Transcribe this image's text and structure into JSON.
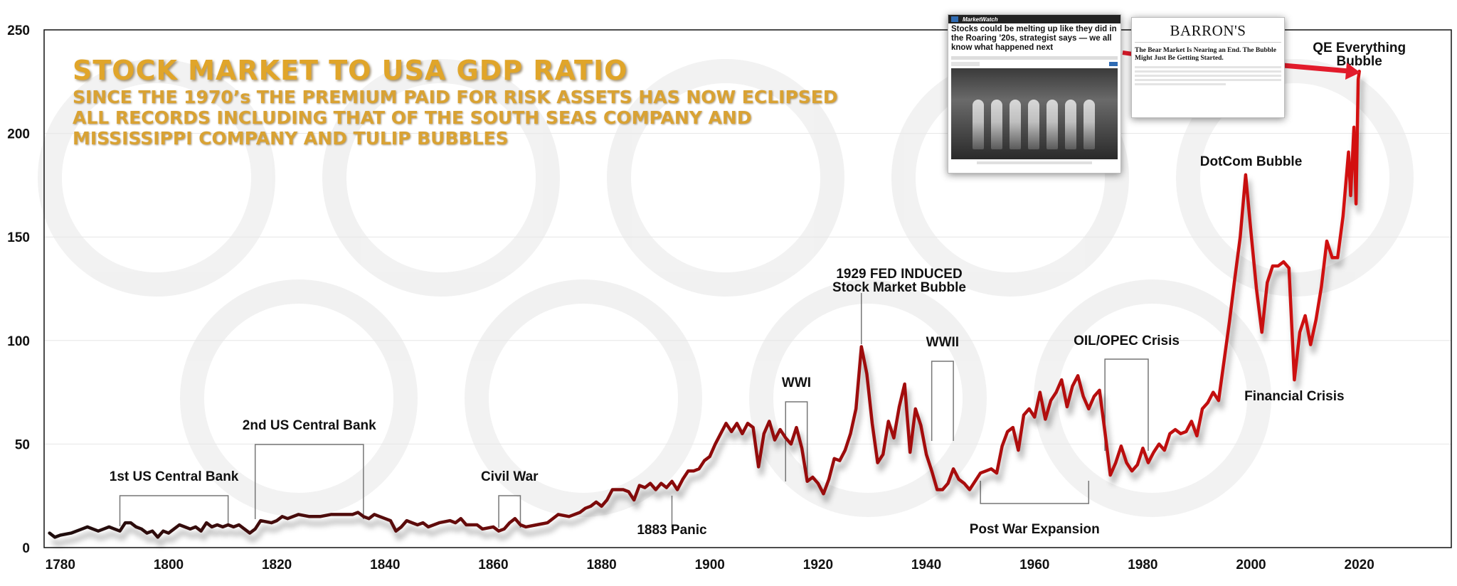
{
  "title": "STOCK MARKET TO USA GDP RATIO",
  "subtitle_lines": [
    "SINCE THE 1970’s THE PREMIUM PAID FOR RISK ASSETS HAS NOW ECLIPSED",
    "ALL RECORDS INCLUDING THAT OF THE SOUTH SEAS COMPANY AND",
    "MISSISSIPPI COMPANY AND TULIP BUBBLES"
  ],
  "colors": {
    "line_start": "#1c0d0d",
    "line_mid": "#8a0a0a",
    "line_end": "#dd1111",
    "title_gold": "#e0a52a",
    "arrow_red": "#e21b2b",
    "bracket_gray": "#777777"
  },
  "clippings": {
    "marketwatch": {
      "brand": "MarketWatch",
      "headline": "Stocks could be melting up like they did in the Roaring ’20s, strategist says — we all know what happened next"
    },
    "barrons": {
      "brand": "BARRON'S",
      "headline": "The Bear Market Is Nearing an End. The Bubble Might Just Be Getting Started."
    }
  },
  "chart_data": {
    "type": "line",
    "xlim": [
      1777,
      2037
    ],
    "ylim": [
      0,
      250
    ],
    "x_ticks": [
      1780,
      1800,
      1820,
      1840,
      1860,
      1880,
      1900,
      1920,
      1940,
      1960,
      1980,
      2000,
      2020
    ],
    "y_ticks": [
      0,
      50,
      100,
      150,
      200,
      250
    ],
    "grid": true,
    "series": [
      {
        "points": [
          [
            1778,
            7
          ],
          [
            1779,
            5
          ],
          [
            1780,
            6
          ],
          [
            1782,
            7
          ],
          [
            1784,
            9
          ],
          [
            1785,
            10
          ],
          [
            1786,
            9
          ],
          [
            1787,
            8
          ],
          [
            1788,
            9
          ],
          [
            1789,
            10
          ],
          [
            1790,
            9
          ],
          [
            1791,
            8
          ],
          [
            1792,
            12
          ],
          [
            1793,
            12
          ],
          [
            1794,
            10
          ],
          [
            1795,
            9
          ],
          [
            1796,
            7
          ],
          [
            1797,
            8
          ],
          [
            1798,
            5
          ],
          [
            1799,
            8
          ],
          [
            1800,
            7
          ],
          [
            1802,
            11
          ],
          [
            1803,
            10
          ],
          [
            1804,
            9
          ],
          [
            1805,
            10
          ],
          [
            1806,
            8
          ],
          [
            1807,
            12
          ],
          [
            1808,
            10
          ],
          [
            1809,
            11
          ],
          [
            1810,
            10
          ],
          [
            1811,
            11
          ],
          [
            1812,
            10
          ],
          [
            1813,
            11
          ],
          [
            1814,
            9
          ],
          [
            1815,
            7
          ],
          [
            1816,
            9
          ],
          [
            1817,
            13
          ],
          [
            1819,
            12
          ],
          [
            1820,
            13
          ],
          [
            1821,
            15
          ],
          [
            1822,
            14
          ],
          [
            1824,
            16
          ],
          [
            1826,
            15
          ],
          [
            1828,
            15
          ],
          [
            1830,
            16
          ],
          [
            1832,
            16
          ],
          [
            1834,
            16
          ],
          [
            1835,
            17
          ],
          [
            1836,
            15
          ],
          [
            1837,
            14
          ],
          [
            1838,
            16
          ],
          [
            1839,
            15
          ],
          [
            1840,
            14
          ],
          [
            1841,
            13
          ],
          [
            1842,
            8
          ],
          [
            1843,
            10
          ],
          [
            1844,
            13
          ],
          [
            1845,
            12
          ],
          [
            1846,
            11
          ],
          [
            1847,
            12
          ],
          [
            1848,
            10
          ],
          [
            1850,
            12
          ],
          [
            1852,
            13
          ],
          [
            1853,
            12
          ],
          [
            1854,
            14
          ],
          [
            1855,
            11
          ],
          [
            1857,
            11
          ],
          [
            1858,
            9
          ],
          [
            1860,
            10
          ],
          [
            1861,
            8
          ],
          [
            1862,
            9
          ],
          [
            1863,
            12
          ],
          [
            1864,
            14
          ],
          [
            1865,
            11
          ],
          [
            1866,
            10
          ],
          [
            1868,
            11
          ],
          [
            1870,
            12
          ],
          [
            1872,
            16
          ],
          [
            1874,
            15
          ],
          [
            1876,
            17
          ],
          [
            1877,
            19
          ],
          [
            1878,
            20
          ],
          [
            1879,
            22
          ],
          [
            1880,
            20
          ],
          [
            1881,
            23
          ],
          [
            1882,
            28
          ],
          [
            1884,
            28
          ],
          [
            1885,
            27
          ],
          [
            1886,
            23
          ],
          [
            1887,
            30
          ],
          [
            1888,
            29
          ],
          [
            1889,
            31
          ],
          [
            1890,
            28
          ],
          [
            1891,
            31
          ],
          [
            1892,
            29
          ],
          [
            1893,
            32
          ],
          [
            1894,
            28
          ],
          [
            1895,
            33
          ],
          [
            1896,
            37
          ],
          [
            1897,
            37
          ],
          [
            1898,
            38
          ],
          [
            1899,
            42
          ],
          [
            1900,
            44
          ],
          [
            1901,
            50
          ],
          [
            1902,
            55
          ],
          [
            1903,
            60
          ],
          [
            1904,
            56
          ],
          [
            1905,
            60
          ],
          [
            1906,
            55
          ],
          [
            1907,
            60
          ],
          [
            1908,
            58
          ],
          [
            1909,
            39
          ],
          [
            1910,
            55
          ],
          [
            1911,
            61
          ],
          [
            1912,
            52
          ],
          [
            1913,
            57
          ],
          [
            1914,
            53
          ],
          [
            1915,
            50
          ],
          [
            1916,
            58
          ],
          [
            1917,
            48
          ],
          [
            1918,
            32
          ],
          [
            1919,
            34
          ],
          [
            1920,
            31
          ],
          [
            1921,
            26
          ],
          [
            1922,
            33
          ],
          [
            1923,
            43
          ],
          [
            1924,
            42
          ],
          [
            1925,
            47
          ],
          [
            1926,
            55
          ],
          [
            1927,
            67
          ],
          [
            1928,
            97
          ],
          [
            1929,
            84
          ],
          [
            1930,
            60
          ],
          [
            1931,
            41
          ],
          [
            1932,
            45
          ],
          [
            1933,
            61
          ],
          [
            1934,
            53
          ],
          [
            1935,
            68
          ],
          [
            1936,
            79
          ],
          [
            1937,
            46
          ],
          [
            1938,
            67
          ],
          [
            1939,
            59
          ],
          [
            1940,
            45
          ],
          [
            1941,
            37
          ],
          [
            1942,
            28
          ],
          [
            1943,
            28
          ],
          [
            1944,
            31
          ],
          [
            1945,
            38
          ],
          [
            1946,
            33
          ],
          [
            1947,
            31
          ],
          [
            1948,
            28
          ],
          [
            1949,
            32
          ],
          [
            1950,
            36
          ],
          [
            1951,
            37
          ],
          [
            1952,
            38
          ],
          [
            1953,
            36
          ],
          [
            1954,
            49
          ],
          [
            1955,
            56
          ],
          [
            1956,
            58
          ],
          [
            1957,
            47
          ],
          [
            1958,
            64
          ],
          [
            1959,
            67
          ],
          [
            1960,
            63
          ],
          [
            1961,
            75
          ],
          [
            1962,
            62
          ],
          [
            1963,
            71
          ],
          [
            1964,
            75
          ],
          [
            1965,
            81
          ],
          [
            1966,
            68
          ],
          [
            1967,
            78
          ],
          [
            1968,
            83
          ],
          [
            1969,
            73
          ],
          [
            1970,
            67
          ],
          [
            1971,
            73
          ],
          [
            1972,
            76
          ],
          [
            1973,
            56
          ],
          [
            1974,
            35
          ],
          [
            1975,
            41
          ],
          [
            1976,
            49
          ],
          [
            1977,
            41
          ],
          [
            1978,
            37
          ],
          [
            1979,
            40
          ],
          [
            1980,
            48
          ],
          [
            1981,
            41
          ],
          [
            1982,
            46
          ],
          [
            1983,
            50
          ],
          [
            1984,
            47
          ],
          [
            1985,
            55
          ],
          [
            1986,
            57
          ],
          [
            1987,
            55
          ],
          [
            1988,
            56
          ],
          [
            1989,
            61
          ],
          [
            1990,
            54
          ],
          [
            1991,
            67
          ],
          [
            1992,
            70
          ],
          [
            1993,
            75
          ],
          [
            1994,
            71
          ],
          [
            1995,
            90
          ],
          [
            1996,
            109
          ],
          [
            1997,
            130
          ],
          [
            1998,
            150
          ],
          [
            1999,
            180
          ],
          [
            2000,
            152
          ],
          [
            2001,
            125
          ],
          [
            2002,
            104
          ],
          [
            2003,
            128
          ],
          [
            2004,
            136
          ],
          [
            2005,
            136
          ],
          [
            2006,
            138
          ],
          [
            2007,
            135
          ],
          [
            2008,
            81
          ],
          [
            2009,
            104
          ],
          [
            2010,
            112
          ],
          [
            2011,
            98
          ],
          [
            2012,
            110
          ],
          [
            2013,
            126
          ],
          [
            2014,
            148
          ],
          [
            2015,
            140
          ],
          [
            2016,
            140
          ],
          [
            2017,
            160
          ],
          [
            2018,
            191
          ],
          [
            2018.4,
            170
          ],
          [
            2019,
            203
          ],
          [
            2019.4,
            166
          ],
          [
            2019.8,
            226
          ],
          [
            2020,
            230
          ]
        ]
      }
    ],
    "annotations": [
      {
        "text": "1st US Central Bank",
        "bracket": [
          1791,
          1811
        ]
      },
      {
        "text": "2nd US Central Bank",
        "bracket": [
          1816,
          1836
        ]
      },
      {
        "text": "Civil War",
        "bracket": [
          1861,
          1865
        ]
      },
      {
        "text": "1883 Panic"
      },
      {
        "text": "WWI",
        "bracket": [
          1914,
          1918
        ]
      },
      {
        "text": "1929 FED INDUCED"
      },
      {
        "text": "Stock Market Bubble"
      },
      {
        "text": "WWII",
        "bracket": [
          1941,
          1945
        ]
      },
      {
        "text": "Post War Expansion",
        "bracket": [
          1950,
          1970
        ]
      },
      {
        "text": "OIL/OPEC Crisis",
        "bracket": [
          1973,
          1981
        ]
      },
      {
        "text": "DotCom Bubble"
      },
      {
        "text": "Financial Crisis"
      },
      {
        "text": "QE Everything"
      },
      {
        "text": "Bubble"
      }
    ]
  }
}
